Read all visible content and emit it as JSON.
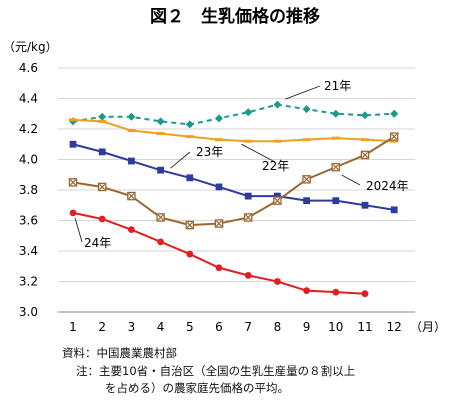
{
  "chart_data": {
    "type": "line",
    "title": "図２　生乳価格の推移",
    "ylabel": "（元/kg）",
    "xunit": "（月）",
    "ylim": [
      3.0,
      4.6
    ],
    "yticks": [
      "3.0",
      "3.2",
      "3.4",
      "3.6",
      "3.8",
      "4.0",
      "4.2",
      "4.4",
      "4.6"
    ],
    "categories": [
      "1",
      "2",
      "3",
      "4",
      "5",
      "6",
      "7",
      "8",
      "9",
      "10",
      "11",
      "12"
    ],
    "grid": true,
    "series": [
      {
        "name": "21年",
        "color": "#1a9b8c",
        "marker": "diamond",
        "dash": true,
        "values": [
          4.25,
          4.28,
          4.28,
          4.25,
          4.23,
          4.27,
          4.31,
          4.36,
          4.33,
          4.3,
          4.29,
          4.3
        ]
      },
      {
        "name": "22年",
        "color": "#f0a020",
        "marker": "dash",
        "dash": false,
        "values": [
          4.26,
          4.25,
          4.19,
          4.17,
          4.15,
          4.13,
          4.12,
          4.12,
          4.13,
          4.14,
          4.13,
          4.12
        ]
      },
      {
        "name": "23年",
        "color": "#2e3a9e",
        "marker": "square",
        "dash": false,
        "values": [
          4.1,
          4.05,
          3.99,
          3.93,
          3.88,
          3.82,
          3.76,
          3.76,
          3.73,
          3.73,
          3.7,
          3.67
        ]
      },
      {
        "name": "2024年",
        "color": "#9a6632",
        "marker": "xsquare",
        "dash": false,
        "values": [
          3.85,
          3.82,
          3.76,
          3.62,
          3.57,
          3.58,
          3.62,
          3.73,
          3.87,
          3.95,
          4.03,
          4.15
        ]
      },
      {
        "name": "24年",
        "color": "#e02020",
        "marker": "circle",
        "dash": false,
        "values": [
          3.65,
          3.61,
          3.54,
          3.46,
          3.38,
          3.29,
          3.24,
          3.2,
          3.14,
          3.13,
          3.12,
          null
        ]
      }
    ]
  },
  "notes": {
    "source": "資料：中国農業農村部",
    "note1": "注：主要10省・自治区（全国の生乳生産量の８割以上",
    "note2": "を占める）の農家庭先価格の平均。"
  }
}
